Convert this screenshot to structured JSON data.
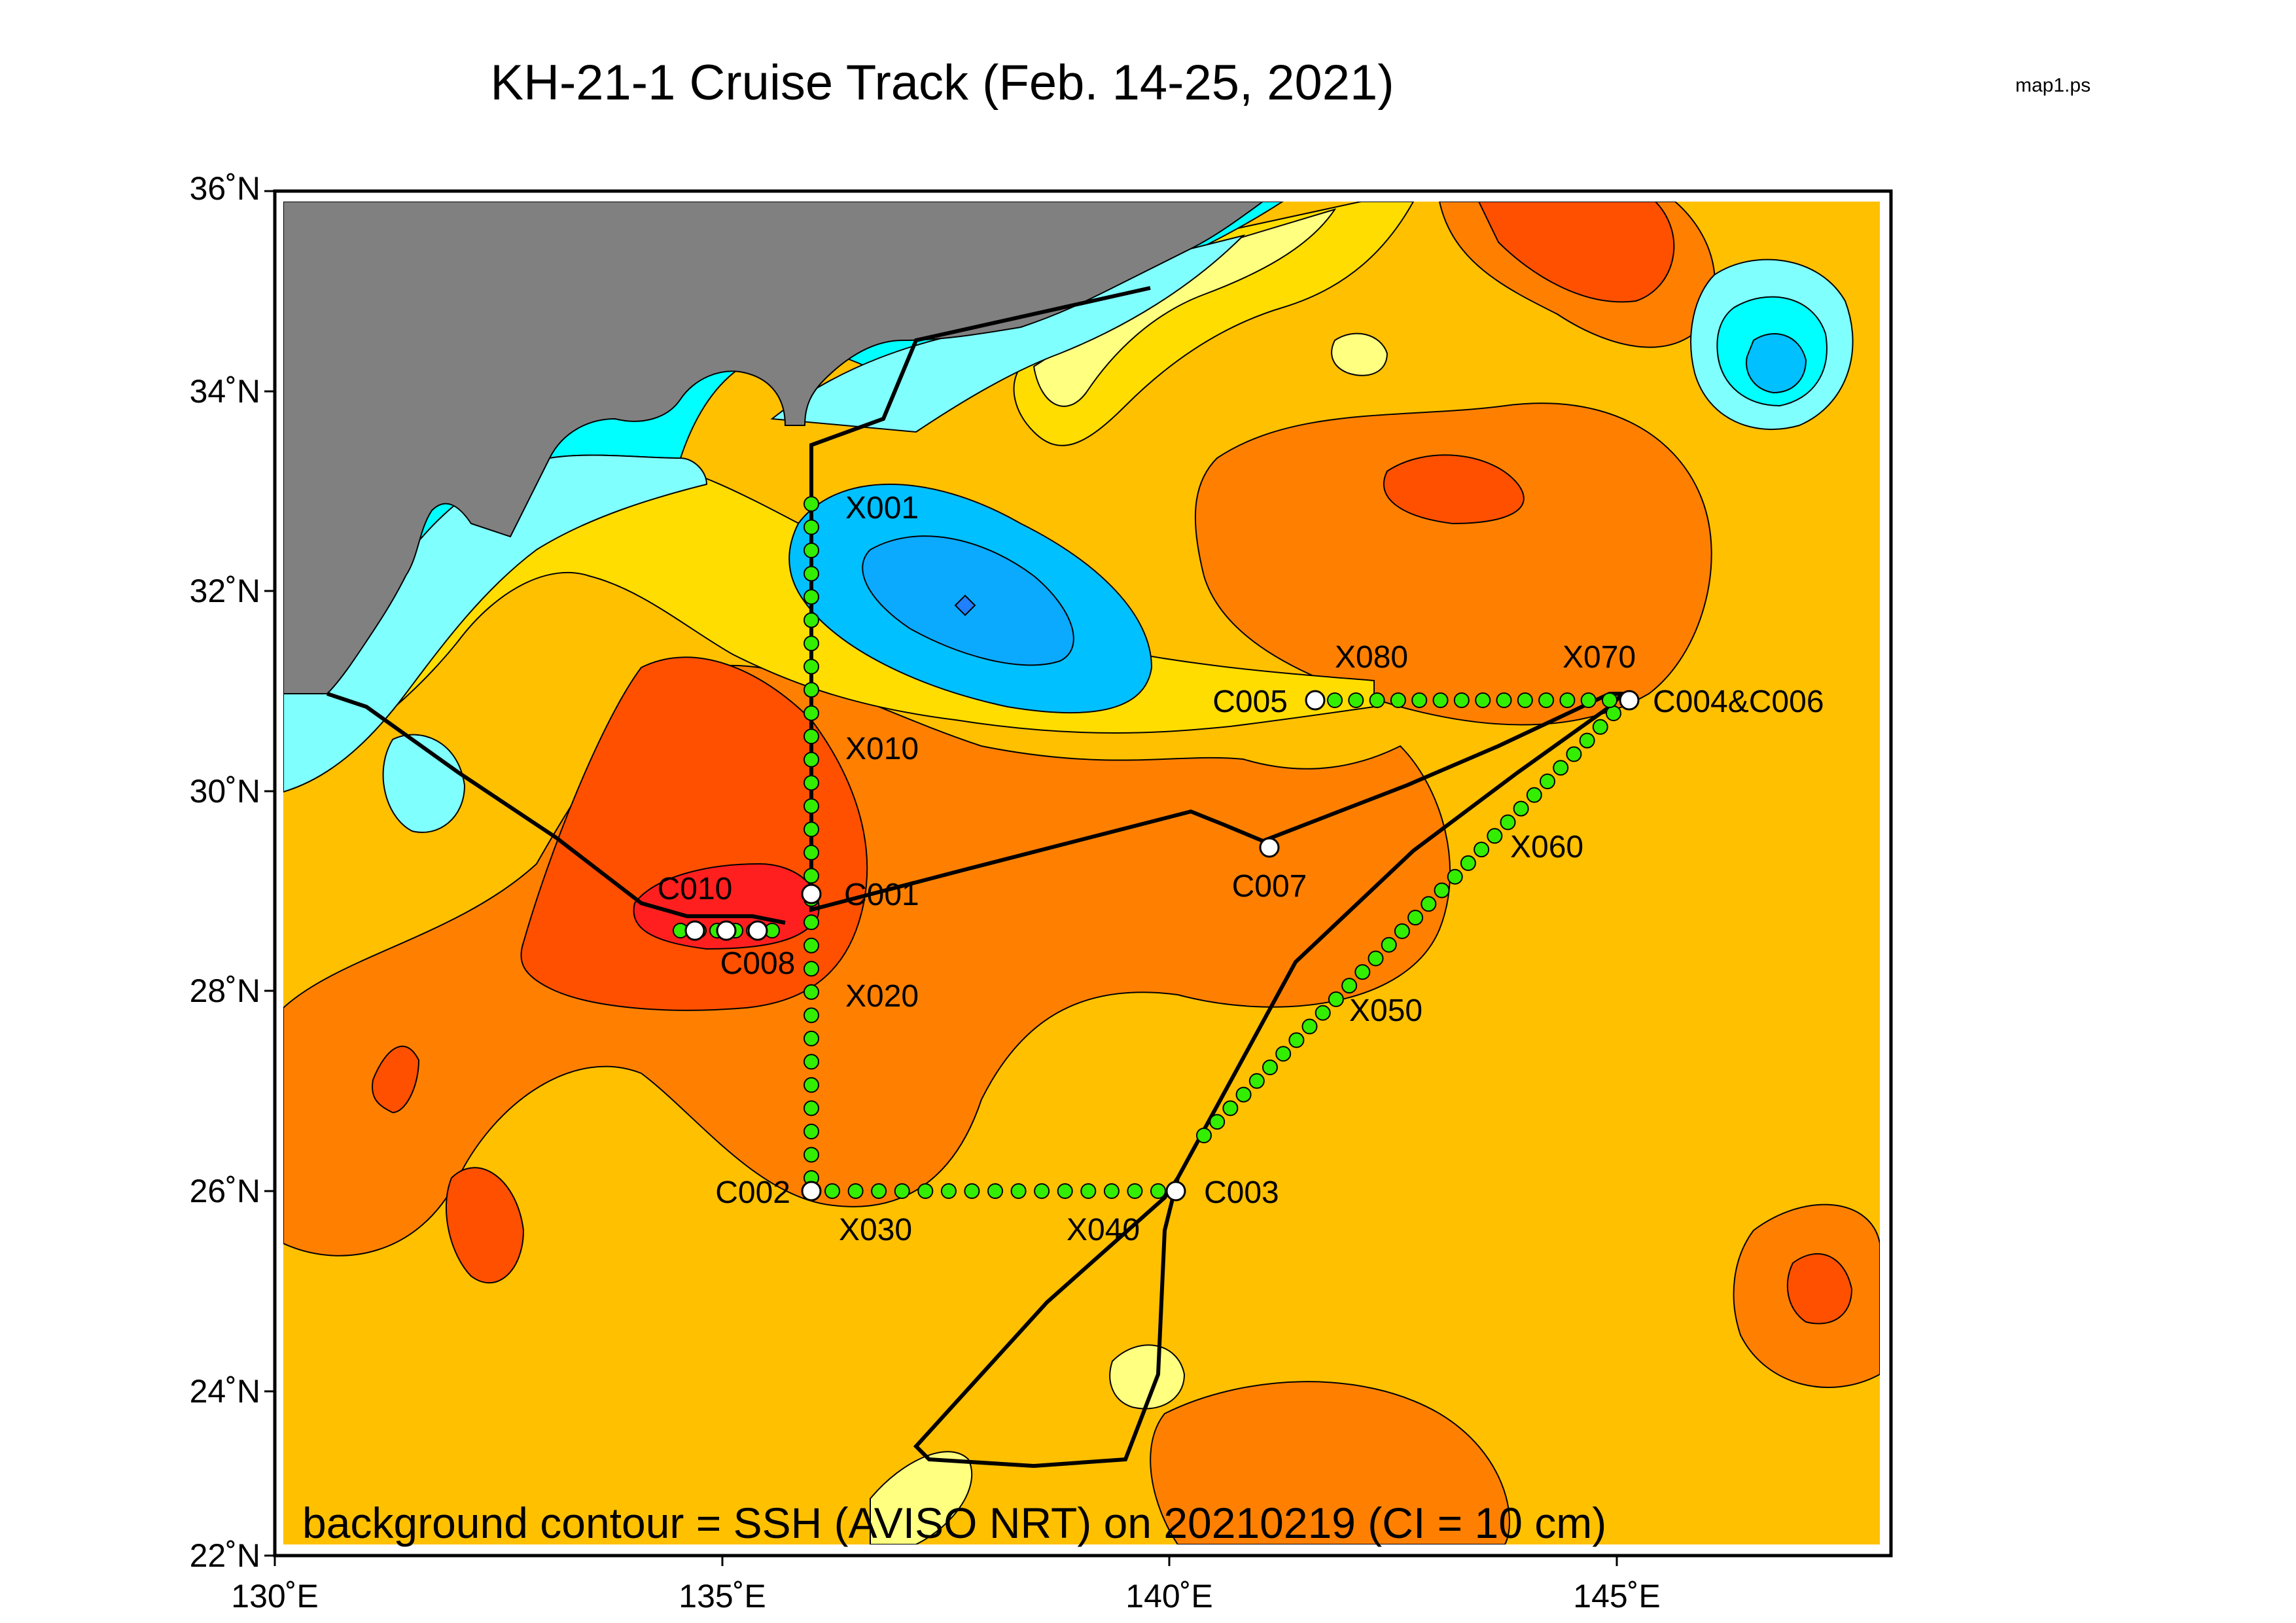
{
  "title": "KH-21-1 Cruise Track (Feb. 14-25, 2021)",
  "file_label": "map1.ps",
  "caption": "background contour = SSH (AVISO NRT) on 20210219   (CI = 10 cm)",
  "lon_labels": [
    "130˚E",
    "135˚E",
    "140˚E",
    "145˚E"
  ],
  "lat_labels": [
    "22˚N",
    "24˚N",
    "26˚N",
    "28˚N",
    "30˚N",
    "32˚N",
    "34˚N",
    "36˚N"
  ],
  "colors": {
    "land": "#808080",
    "cyan": "#00ffff",
    "light_cyan": "#80ffff",
    "deep_blue": "#2080ff",
    "blue": "#00c0ff",
    "light_yellow": "#ffff80",
    "yellow": "#ffdd00",
    "light_orange": "#ffc000",
    "orange": "#ff8000",
    "dark_orange": "#ff5000",
    "red": "#ff1f1f",
    "station_fill": "#33ee00",
    "track": "#000000"
  },
  "stations": [
    {
      "id": "X001",
      "lon": 136.0,
      "lat": 32.9
    },
    {
      "id": "X010",
      "lon": 136.0,
      "lat": 30.5
    },
    {
      "id": "X020",
      "lon": 136.0,
      "lat": 28.0
    },
    {
      "id": "X030",
      "lon": 136.0,
      "lat": 25.6
    },
    {
      "id": "X040",
      "lon": 139.2,
      "lat": 25.6
    },
    {
      "id": "X050",
      "lon": 140.6,
      "lat": 27.8
    },
    {
      "id": "X060",
      "lon": 143.6,
      "lat": 29.5
    },
    {
      "id": "X070",
      "lon": 145.0,
      "lat": 31.0
    },
    {
      "id": "X080",
      "lon": 142.2,
      "lat": 31.0
    }
  ],
  "ctd_stations": [
    {
      "id": "C001",
      "lon": 136.0,
      "lat": 29.0
    },
    {
      "id": "C002",
      "lon": 136.0,
      "lat": 26.0
    },
    {
      "id": "C003",
      "lon": 140.0,
      "lat": 26.0
    },
    {
      "id": "C004&C006",
      "lon": 145.0,
      "lat": 31.0
    },
    {
      "id": "C005",
      "lon": 141.5,
      "lat": 31.0
    },
    {
      "id": "C007",
      "lon": 141.0,
      "lat": 29.5
    },
    {
      "id": "C008",
      "lon": 135.0,
      "lat": 28.65
    },
    {
      "id": "C010",
      "lon": 134.7,
      "lat": 28.65
    }
  ]
}
